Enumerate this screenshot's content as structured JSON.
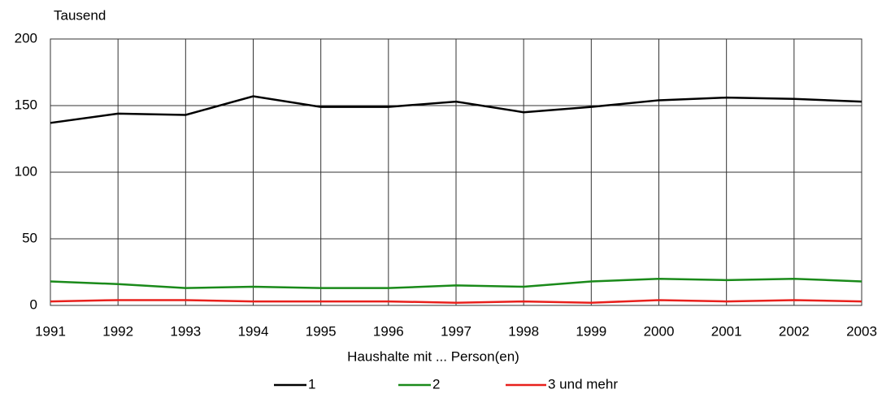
{
  "chart_data": {
    "type": "line",
    "y_label": "Tausend",
    "x_label": "Haushalte mit ... Person(en)",
    "x": [
      1991,
      1992,
      1993,
      1994,
      1995,
      1996,
      1997,
      1998,
      1999,
      2000,
      2001,
      2002,
      2003
    ],
    "xlim": [
      1991,
      2003
    ],
    "xticks": [
      1991,
      1992,
      1993,
      1994,
      1995,
      1996,
      1997,
      1998,
      1999,
      2000,
      2001,
      2002,
      2003
    ],
    "ylim": [
      0,
      200
    ],
    "yticks": [
      0,
      50,
      100,
      150,
      200
    ],
    "grid": true,
    "legend": "bottom",
    "series": [
      {
        "name": "1",
        "color": "#000000",
        "values": [
          137,
          144,
          143,
          157,
          149,
          149,
          153,
          145,
          149,
          154,
          156,
          155,
          153
        ]
      },
      {
        "name": "2",
        "color": "#1a8a1a",
        "values": [
          18,
          16,
          13,
          14,
          13,
          13,
          15,
          14,
          18,
          20,
          19,
          20,
          18
        ]
      },
      {
        "name": "3 und mehr",
        "color": "#e8201c",
        "values": [
          3,
          4,
          4,
          3,
          3,
          3,
          2,
          3,
          2,
          4,
          3,
          4,
          3
        ]
      }
    ]
  }
}
